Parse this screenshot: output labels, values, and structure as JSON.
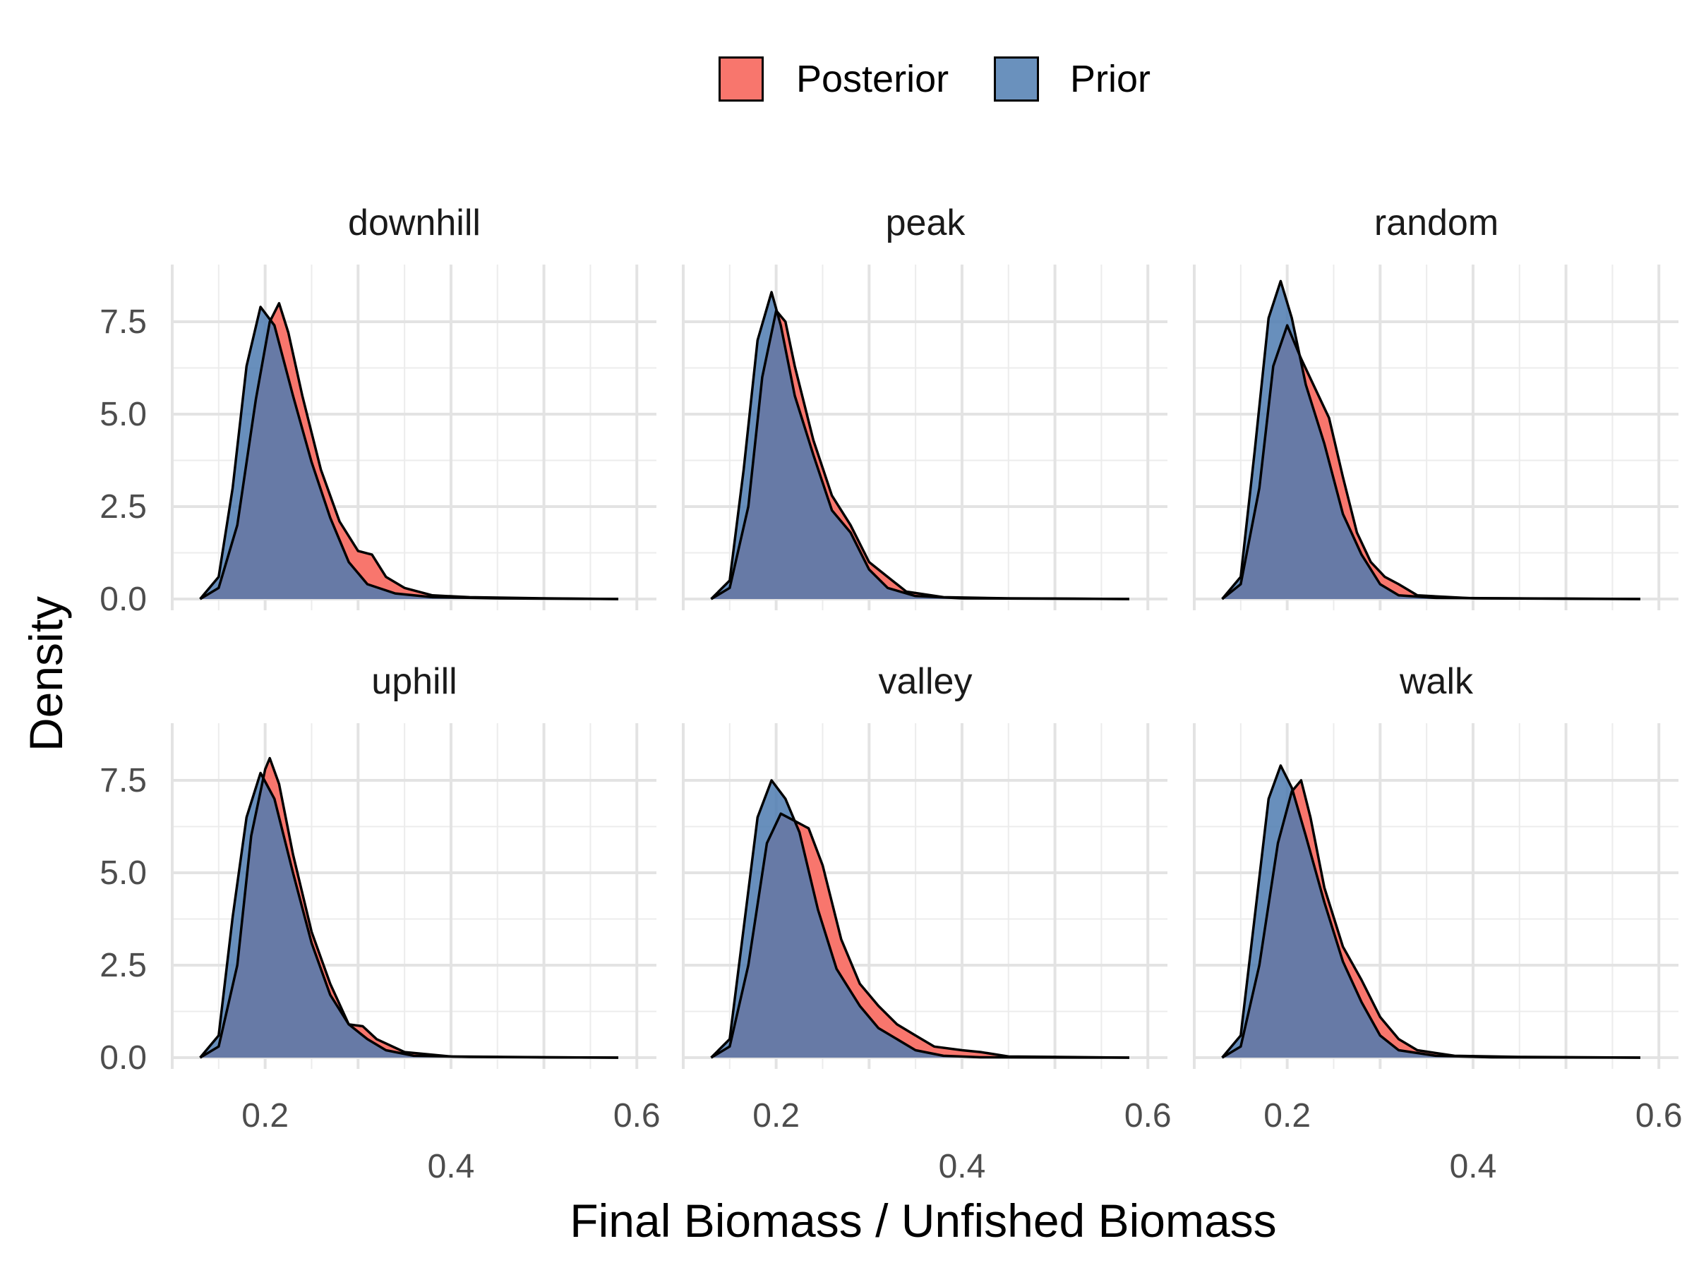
{
  "legend": {
    "posterior_label": "Posterior",
    "prior_label": "Prior"
  },
  "colors": {
    "posterior": "#F8766D",
    "prior": "#4E7BB0",
    "overlap": "#5B6289"
  },
  "chart_data": {
    "type": "area",
    "xlabel": "Final Biomass / Unfished Biomass",
    "ylabel": "Density",
    "xlim": [
      0.1,
      0.615
    ],
    "ylim": [
      0,
      8.6
    ],
    "x_ticks": [
      {
        "value": 0.2,
        "label": "0.2"
      },
      {
        "value": 0.4,
        "label": "0.4"
      },
      {
        "value": 0.6,
        "label": "0.6"
      }
    ],
    "y_ticks": [
      "0.0",
      "2.5",
      "5.0",
      "7.5"
    ],
    "grid": true,
    "legend_position": "top",
    "facets": [
      {
        "title": "downhill",
        "series": [
          {
            "name": "Posterior",
            "points": [
              [
                0.13,
                0
              ],
              [
                0.15,
                0.3
              ],
              [
                0.17,
                2
              ],
              [
                0.19,
                5.4
              ],
              [
                0.205,
                7.5
              ],
              [
                0.215,
                8
              ],
              [
                0.225,
                7.2
              ],
              [
                0.24,
                5.5
              ],
              [
                0.26,
                3.5
              ],
              [
                0.28,
                2.1
              ],
              [
                0.3,
                1.3
              ],
              [
                0.315,
                1.2
              ],
              [
                0.33,
                0.6
              ],
              [
                0.35,
                0.3
              ],
              [
                0.38,
                0.1
              ],
              [
                0.42,
                0.05
              ],
              [
                0.5,
                0.02
              ],
              [
                0.58,
                0
              ]
            ]
          },
          {
            "name": "Prior",
            "points": [
              [
                0.13,
                0
              ],
              [
                0.15,
                0.6
              ],
              [
                0.165,
                3
              ],
              [
                0.18,
                6.3
              ],
              [
                0.195,
                7.9
              ],
              [
                0.21,
                7.4
              ],
              [
                0.23,
                5.5
              ],
              [
                0.25,
                3.7
              ],
              [
                0.27,
                2.2
              ],
              [
                0.29,
                1
              ],
              [
                0.31,
                0.4
              ],
              [
                0.34,
                0.15
              ],
              [
                0.38,
                0.05
              ],
              [
                0.45,
                0.02
              ],
              [
                0.58,
                0
              ]
            ]
          }
        ]
      },
      {
        "title": "peak",
        "series": [
          {
            "name": "Posterior",
            "points": [
              [
                0.13,
                0
              ],
              [
                0.15,
                0.3
              ],
              [
                0.17,
                2.5
              ],
              [
                0.185,
                6
              ],
              [
                0.2,
                7.8
              ],
              [
                0.21,
                7.5
              ],
              [
                0.22,
                6.3
              ],
              [
                0.24,
                4.3
              ],
              [
                0.26,
                2.8
              ],
              [
                0.28,
                2
              ],
              [
                0.3,
                1
              ],
              [
                0.32,
                0.6
              ],
              [
                0.34,
                0.2
              ],
              [
                0.38,
                0.05
              ],
              [
                0.45,
                0.02
              ],
              [
                0.58,
                0
              ]
            ]
          },
          {
            "name": "Prior",
            "points": [
              [
                0.13,
                0
              ],
              [
                0.15,
                0.5
              ],
              [
                0.165,
                3.5
              ],
              [
                0.18,
                7
              ],
              [
                0.195,
                8.3
              ],
              [
                0.205,
                7.4
              ],
              [
                0.22,
                5.5
              ],
              [
                0.24,
                3.9
              ],
              [
                0.26,
                2.4
              ],
              [
                0.28,
                1.8
              ],
              [
                0.3,
                0.8
              ],
              [
                0.32,
                0.3
              ],
              [
                0.35,
                0.08
              ],
              [
                0.4,
                0.02
              ],
              [
                0.58,
                0
              ]
            ]
          }
        ]
      },
      {
        "title": "random",
        "series": [
          {
            "name": "Posterior",
            "points": [
              [
                0.13,
                0
              ],
              [
                0.15,
                0.4
              ],
              [
                0.17,
                3
              ],
              [
                0.185,
                6.3
              ],
              [
                0.2,
                7.4
              ],
              [
                0.215,
                6.5
              ],
              [
                0.23,
                5.7
              ],
              [
                0.245,
                4.9
              ],
              [
                0.26,
                3.3
              ],
              [
                0.275,
                1.8
              ],
              [
                0.29,
                1
              ],
              [
                0.305,
                0.6
              ],
              [
                0.32,
                0.4
              ],
              [
                0.34,
                0.1
              ],
              [
                0.4,
                0.02
              ],
              [
                0.58,
                0
              ]
            ]
          },
          {
            "name": "Prior",
            "points": [
              [
                0.13,
                0
              ],
              [
                0.15,
                0.6
              ],
              [
                0.165,
                4
              ],
              [
                0.18,
                7.6
              ],
              [
                0.193,
                8.6
              ],
              [
                0.205,
                7.6
              ],
              [
                0.22,
                5.8
              ],
              [
                0.24,
                4.2
              ],
              [
                0.26,
                2.3
              ],
              [
                0.28,
                1.2
              ],
              [
                0.3,
                0.4
              ],
              [
                0.32,
                0.1
              ],
              [
                0.36,
                0.03
              ],
              [
                0.58,
                0
              ]
            ]
          }
        ]
      },
      {
        "title": "uphill",
        "series": [
          {
            "name": "Posterior",
            "points": [
              [
                0.13,
                0
              ],
              [
                0.15,
                0.3
              ],
              [
                0.17,
                2.5
              ],
              [
                0.185,
                6
              ],
              [
                0.2,
                7.8
              ],
              [
                0.205,
                8.1
              ],
              [
                0.215,
                7.4
              ],
              [
                0.23,
                5.5
              ],
              [
                0.25,
                3.4
              ],
              [
                0.27,
                2
              ],
              [
                0.29,
                0.9
              ],
              [
                0.305,
                0.85
              ],
              [
                0.32,
                0.5
              ],
              [
                0.35,
                0.15
              ],
              [
                0.4,
                0.03
              ],
              [
                0.5,
                0.01
              ],
              [
                0.58,
                0
              ]
            ]
          },
          {
            "name": "Prior",
            "points": [
              [
                0.13,
                0
              ],
              [
                0.15,
                0.6
              ],
              [
                0.165,
                3.8
              ],
              [
                0.18,
                6.5
              ],
              [
                0.195,
                7.7
              ],
              [
                0.21,
                7
              ],
              [
                0.23,
                5
              ],
              [
                0.25,
                3.1
              ],
              [
                0.27,
                1.7
              ],
              [
                0.29,
                0.9
              ],
              [
                0.31,
                0.5
              ],
              [
                0.33,
                0.2
              ],
              [
                0.36,
                0.05
              ],
              [
                0.42,
                0.02
              ],
              [
                0.58,
                0
              ]
            ]
          }
        ]
      },
      {
        "title": "valley",
        "series": [
          {
            "name": "Posterior",
            "points": [
              [
                0.13,
                0
              ],
              [
                0.15,
                0.3
              ],
              [
                0.17,
                2.5
              ],
              [
                0.19,
                5.8
              ],
              [
                0.205,
                6.6
              ],
              [
                0.22,
                6.4
              ],
              [
                0.235,
                6.2
              ],
              [
                0.25,
                5.2
              ],
              [
                0.27,
                3.2
              ],
              [
                0.29,
                2
              ],
              [
                0.31,
                1.4
              ],
              [
                0.33,
                0.9
              ],
              [
                0.35,
                0.6
              ],
              [
                0.37,
                0.3
              ],
              [
                0.4,
                0.2
              ],
              [
                0.42,
                0.15
              ],
              [
                0.45,
                0.03
              ],
              [
                0.58,
                0
              ]
            ]
          },
          {
            "name": "Prior",
            "points": [
              [
                0.13,
                0
              ],
              [
                0.15,
                0.5
              ],
              [
                0.165,
                3.5
              ],
              [
                0.18,
                6.5
              ],
              [
                0.195,
                7.5
              ],
              [
                0.21,
                7
              ],
              [
                0.225,
                6.1
              ],
              [
                0.245,
                4
              ],
              [
                0.265,
                2.4
              ],
              [
                0.29,
                1.4
              ],
              [
                0.31,
                0.8
              ],
              [
                0.33,
                0.5
              ],
              [
                0.35,
                0.2
              ],
              [
                0.38,
                0.05
              ],
              [
                0.42,
                0.01
              ],
              [
                0.58,
                0
              ]
            ]
          }
        ]
      },
      {
        "title": "walk",
        "series": [
          {
            "name": "Posterior",
            "points": [
              [
                0.13,
                0
              ],
              [
                0.15,
                0.3
              ],
              [
                0.17,
                2.5
              ],
              [
                0.19,
                5.8
              ],
              [
                0.205,
                7.2
              ],
              [
                0.215,
                7.5
              ],
              [
                0.225,
                6.5
              ],
              [
                0.24,
                4.6
              ],
              [
                0.26,
                3
              ],
              [
                0.28,
                2.1
              ],
              [
                0.3,
                1.1
              ],
              [
                0.32,
                0.5
              ],
              [
                0.34,
                0.2
              ],
              [
                0.38,
                0.05
              ],
              [
                0.45,
                0.02
              ],
              [
                0.58,
                0
              ]
            ]
          },
          {
            "name": "Prior",
            "points": [
              [
                0.13,
                0
              ],
              [
                0.15,
                0.6
              ],
              [
                0.165,
                3.8
              ],
              [
                0.18,
                7
              ],
              [
                0.193,
                7.9
              ],
              [
                0.205,
                7.3
              ],
              [
                0.22,
                6
              ],
              [
                0.24,
                4.2
              ],
              [
                0.26,
                2.6
              ],
              [
                0.28,
                1.5
              ],
              [
                0.3,
                0.6
              ],
              [
                0.32,
                0.2
              ],
              [
                0.36,
                0.05
              ],
              [
                0.42,
                0.01
              ],
              [
                0.58,
                0
              ]
            ]
          }
        ]
      }
    ]
  }
}
